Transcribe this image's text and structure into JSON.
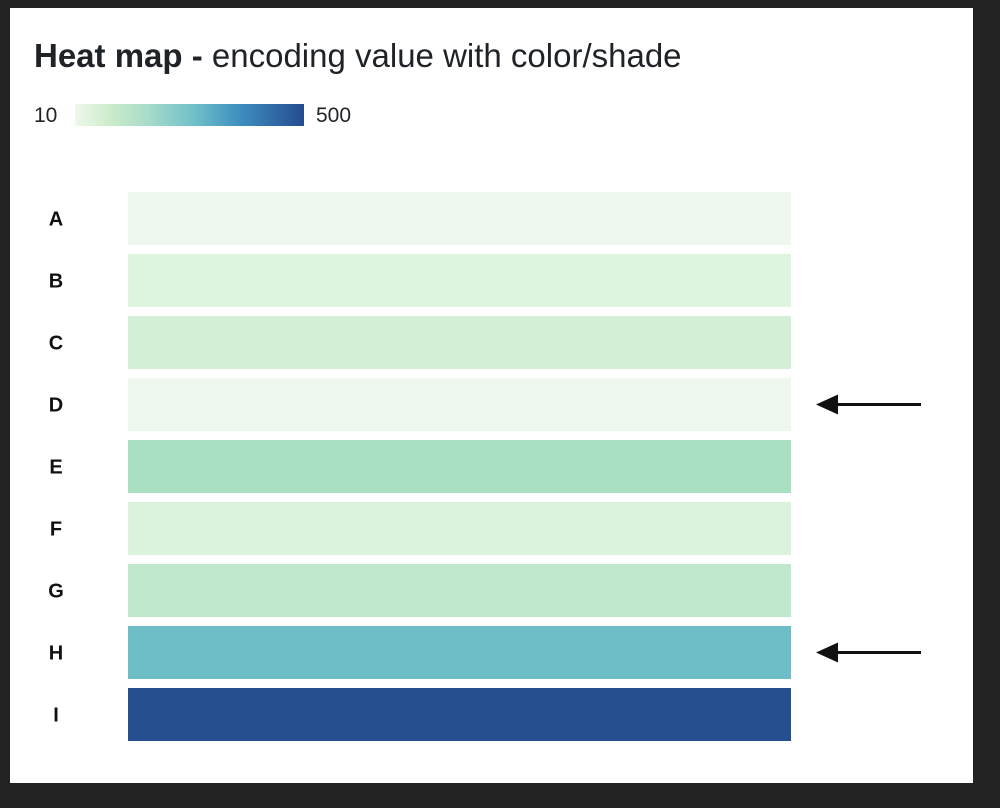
{
  "title": {
    "bold": "Heat map -",
    "rest": " encoding value with color/shade"
  },
  "legend": {
    "min_label": "10",
    "max_label": "500"
  },
  "chart_data": {
    "type": "heatmap",
    "title": "Heat map - encoding value with color/shade",
    "color_scale": {
      "min": 10,
      "max": 500,
      "colors": [
        "#eef8ec",
        "#cdeccb",
        "#a8dbc9",
        "#6fc0c9",
        "#3e8ec0",
        "#254b8f"
      ]
    },
    "rows": [
      "A",
      "B",
      "C",
      "D",
      "E",
      "F",
      "G",
      "H",
      "I"
    ],
    "values": [
      12,
      35,
      50,
      14,
      95,
      40,
      75,
      250,
      500
    ],
    "cell_colors": [
      "#eef7ee",
      "#def4df",
      "#d3efd6",
      "#eef7ee",
      "#a9e0c2",
      "#dbf3dc",
      "#bfe8cc",
      "#6ebec8",
      "#264f8f"
    ],
    "highlighted_rows": [
      "D",
      "H"
    ],
    "annotation": "arrows point to rows D and H"
  }
}
